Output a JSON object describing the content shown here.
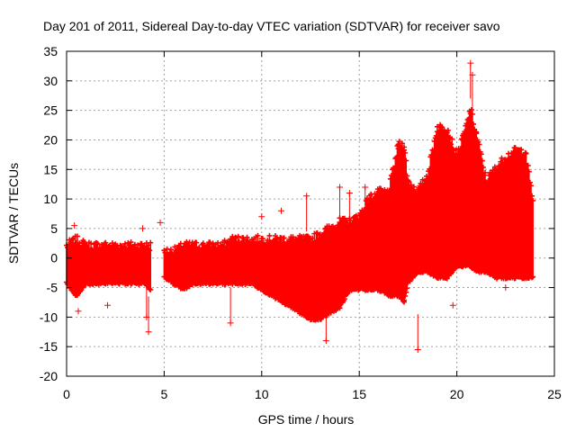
{
  "chart_data": {
    "type": "scatter",
    "title": "Day 201 of 2011, Sidereal Day-to-day VTEC variation (SDTVAR) for receiver savo",
    "xlabel": "GPS time / hours",
    "ylabel": "SDTVAR / TECUs",
    "xlim": [
      0,
      25
    ],
    "ylim": [
      -20,
      35
    ],
    "xticks": [
      0,
      5,
      10,
      15,
      20,
      25
    ],
    "yticks": [
      -20,
      -15,
      -10,
      -5,
      0,
      5,
      10,
      15,
      20,
      25,
      30,
      35
    ],
    "grid": true,
    "marker": "+",
    "series_color": "#ff0000",
    "envelope": {
      "x": [
        0.0,
        0.5,
        1.0,
        1.5,
        2.0,
        2.5,
        3.0,
        3.5,
        4.0,
        4.3,
        4.8,
        5.0,
        5.5,
        6.0,
        6.5,
        7.0,
        7.5,
        8.0,
        8.5,
        9.0,
        9.5,
        10.0,
        10.5,
        11.0,
        11.5,
        12.0,
        12.5,
        13.0,
        13.5,
        14.0,
        14.5,
        15.0,
        15.5,
        16.0,
        16.5,
        17.0,
        17.3,
        17.5,
        18.0,
        18.5,
        19.0,
        19.5,
        20.0,
        20.3,
        20.7,
        21.0,
        21.5,
        22.0,
        22.5,
        23.0,
        23.5,
        23.9
      ],
      "upper": [
        2,
        3,
        2,
        2,
        2,
        2,
        2,
        2,
        2,
        2,
        null,
        1,
        1,
        2,
        2,
        2,
        2,
        2,
        3,
        3,
        3,
        3,
        3,
        3,
        3,
        3,
        3,
        4,
        5,
        6,
        6,
        7,
        10,
        11,
        11,
        19,
        19,
        13,
        11,
        14,
        22,
        22,
        17,
        20,
        25,
        21,
        13,
        15,
        17,
        18,
        18,
        10
      ],
      "lower": [
        -4,
        -6,
        -4,
        -4,
        -4,
        -4,
        -4,
        -4,
        -4,
        -5,
        null,
        -3,
        -4,
        -5,
        -4,
        -4,
        -4,
        -4,
        -4,
        -4,
        -4,
        -5,
        -6,
        -7,
        -8,
        -9,
        -10,
        -10,
        -9,
        -8,
        -5,
        -5,
        -5,
        -5,
        -6,
        -6,
        -7,
        -4,
        -2,
        -2,
        -3,
        -3,
        -1,
        -1,
        -1,
        -2,
        -2,
        -3,
        -3,
        -3,
        -3,
        -3
      ]
    },
    "outliers": [
      {
        "x": 0.4,
        "y": 5.5
      },
      {
        "x": 0.6,
        "y": -9
      },
      {
        "x": 2.1,
        "y": -8
      },
      {
        "x": 3.9,
        "y": 5
      },
      {
        "x": 4.2,
        "y": -12.5
      },
      {
        "x": 4.1,
        "y": -10
      },
      {
        "x": 4.8,
        "y": 6
      },
      {
        "x": 8.4,
        "y": -11
      },
      {
        "x": 10.0,
        "y": 7
      },
      {
        "x": 11.0,
        "y": 8
      },
      {
        "x": 12.3,
        "y": 10.5
      },
      {
        "x": 13.3,
        "y": -14
      },
      {
        "x": 14.0,
        "y": 12
      },
      {
        "x": 14.5,
        "y": 11
      },
      {
        "x": 15.3,
        "y": 12
      },
      {
        "x": 18.0,
        "y": -15.5
      },
      {
        "x": 20.7,
        "y": 33
      },
      {
        "x": 20.8,
        "y": 31
      },
      {
        "x": 22.5,
        "y": -5
      },
      {
        "x": 19.8,
        "y": -8
      }
    ]
  }
}
